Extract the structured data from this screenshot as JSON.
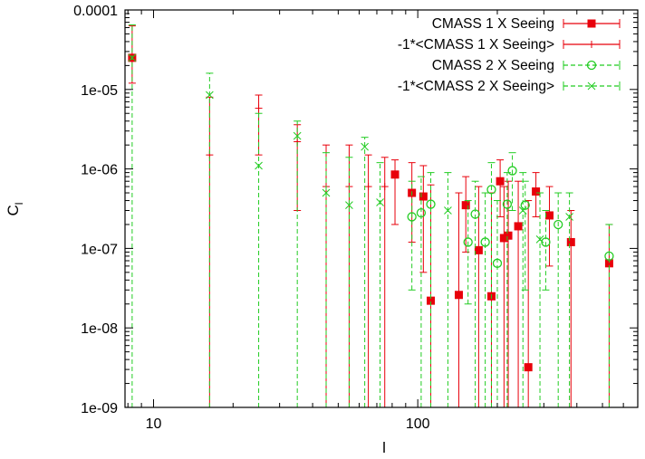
{
  "chart_data": {
    "type": "scatter",
    "title": "",
    "xlabel": "l",
    "ylabel": "C",
    "ylabel_subscript": "l",
    "x_scale": "log",
    "y_scale": "log",
    "xlim": [
      7.8,
      680
    ],
    "ylim": [
      1e-09,
      0.0001
    ],
    "x_ticks": [
      {
        "value": 10,
        "label": "10"
      },
      {
        "value": 100,
        "label": "100"
      }
    ],
    "y_ticks": [
      {
        "value": 1e-09,
        "label": "1e-09"
      },
      {
        "value": 1e-08,
        "label": "1e-08"
      },
      {
        "value": 1e-07,
        "label": "1e-07"
      },
      {
        "value": 1e-06,
        "label": "1e-06"
      },
      {
        "value": 1e-05,
        "label": "1e-05"
      },
      {
        "value": 0.0001,
        "label": "0.0001"
      }
    ],
    "grid": false,
    "legend_position": "top-right",
    "series": [
      {
        "name": "CMASS 1 X Seeing",
        "color": "#e8000b",
        "marker": "filled-square",
        "line": "solid",
        "points": [
          [
            8.3,
            2.5e-05,
            1.2e-05,
            6.3e-05
          ],
          [
            82,
            8.5e-07,
            2e-07,
            1.3e-06
          ],
          [
            95,
            5e-07,
            1.2e-07,
            1.2e-06
          ],
          [
            105,
            4.5e-07,
            5e-08,
            1.1e-06
          ],
          [
            112,
            2.2e-08,
            1e-09,
            6.3e-07
          ],
          [
            143,
            2.6e-08,
            1e-09,
            5e-07
          ],
          [
            152,
            3.5e-07,
            9e-08,
            8e-07
          ],
          [
            170,
            9.5e-08,
            1e-09,
            6e-07
          ],
          [
            190,
            2.5e-08,
            1e-09,
            5e-07
          ],
          [
            205,
            7e-07,
            2.5e-07,
            1.3e-06
          ],
          [
            212,
            1.35e-07,
            1e-09,
            6e-07
          ],
          [
            220,
            1.45e-07,
            1e-09,
            7e-07
          ],
          [
            240,
            1.9e-07,
            1e-09,
            7e-07
          ],
          [
            262,
            3.2e-09,
            1e-09,
            4e-07
          ],
          [
            280,
            5.2e-07,
            2.5e-07,
            9e-07
          ],
          [
            315,
            2.6e-07,
            6e-08,
            6e-07
          ],
          [
            380,
            1.2e-07,
            1e-09,
            3e-07
          ],
          [
            530,
            6.5e-08,
            1e-09,
            2e-07
          ]
        ]
      },
      {
        "name": "-1*<CMASS 1 X Seeing>",
        "color": "#e8000b",
        "marker": "plus",
        "line": "solid",
        "points": [
          [
            16.3,
            1.5e-06,
            1e-09,
            8e-06
          ],
          [
            25,
            5.8e-06,
            1.5e-06,
            8.5e-06
          ],
          [
            35,
            2.2e-06,
            3e-07,
            3.6e-06
          ],
          [
            45,
            6e-07,
            1e-09,
            2e-06
          ],
          [
            55,
            6e-07,
            1e-09,
            2e-06
          ],
          [
            65,
            6e-07,
            1e-09,
            1.5e-06
          ],
          [
            75,
            6e-07,
            1e-09,
            1.4e-06
          ]
        ]
      },
      {
        "name": "CMASS 2 X Seeing",
        "color": "#22cc22",
        "marker": "open-circle",
        "line": "dashed",
        "points": [
          [
            95,
            2.5e-07,
            3e-08,
            7e-07
          ],
          [
            103,
            2.8e-07,
            1e-09,
            8e-07
          ],
          [
            112,
            3.6e-07,
            1e-09,
            9e-07
          ],
          [
            155,
            1.2e-07,
            2e-08,
            4e-07
          ],
          [
            165,
            2.7e-07,
            1e-09,
            7e-07
          ],
          [
            180,
            1.2e-07,
            1e-09,
            5e-07
          ],
          [
            190,
            5.5e-07,
            1e-09,
            1.2e-06
          ],
          [
            200,
            6.5e-08,
            1e-09,
            4e-07
          ],
          [
            218,
            3.6e-07,
            1e-09,
            9e-07
          ],
          [
            228,
            9.5e-07,
            3e-07,
            1.6e-06
          ],
          [
            255,
            3.5e-07,
            3e-08,
            7e-07
          ],
          [
            305,
            1.2e-07,
            3e-08,
            3e-07
          ],
          [
            340,
            2e-07,
            1e-09,
            5e-07
          ],
          [
            530,
            8e-08,
            1e-09,
            2e-07
          ]
        ]
      },
      {
        "name": "-1*<CMASS 2 X Seeing>",
        "color": "#22cc22",
        "marker": "cross",
        "line": "dashed",
        "points": [
          [
            8.3,
            2.5e-05,
            1e-09,
            6.5e-05
          ],
          [
            16.3,
            8.5e-06,
            1e-09,
            1.6e-05
          ],
          [
            25,
            1.1e-06,
            1e-09,
            5e-06
          ],
          [
            35,
            2.6e-06,
            1e-09,
            4e-06
          ],
          [
            45,
            5e-07,
            1e-09,
            1.6e-06
          ],
          [
            55,
            3.5e-07,
            1e-09,
            1.4e-06
          ],
          [
            63,
            1.9e-06,
            1e-09,
            2.5e-06
          ],
          [
            72,
            3.8e-07,
            1e-09,
            1.2e-06
          ],
          [
            130,
            3e-07,
            1e-09,
            9e-07
          ],
          [
            250,
            3e-07,
            1e-09,
            9e-07
          ],
          [
            290,
            1.3e-07,
            1e-09,
            5e-07
          ],
          [
            375,
            2.5e-07,
            1e-09,
            5e-07
          ]
        ]
      }
    ]
  }
}
